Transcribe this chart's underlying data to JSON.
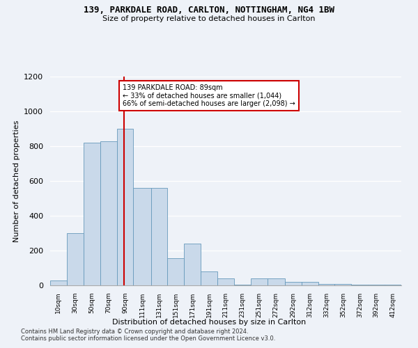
{
  "title1": "139, PARKDALE ROAD, CARLTON, NOTTINGHAM, NG4 1BW",
  "title2": "Size of property relative to detached houses in Carlton",
  "xlabel": "Distribution of detached houses by size in Carlton",
  "ylabel": "Number of detached properties",
  "annotation_title": "139 PARKDALE ROAD: 89sqm",
  "annotation_line1": "← 33% of detached houses are smaller (1,044)",
  "annotation_line2": "66% of semi-detached houses are larger (2,098) →",
  "footer1": "Contains HM Land Registry data © Crown copyright and database right 2024.",
  "footer2": "Contains public sector information licensed under the Open Government Licence v3.0.",
  "bar_color": "#c9d9ea",
  "bar_edge_color": "#6699bb",
  "property_line_color": "#cc0000",
  "annotation_box_color": "#cc0000",
  "background_color": "#eef2f8",
  "categories": [
    "10sqm",
    "30sqm",
    "50sqm",
    "70sqm",
    "90sqm",
    "111sqm",
    "131sqm",
    "151sqm",
    "171sqm",
    "191sqm",
    "211sqm",
    "231sqm",
    "251sqm",
    "272sqm",
    "292sqm",
    "312sqm",
    "332sqm",
    "352sqm",
    "372sqm",
    "392sqm",
    "412sqm"
  ],
  "bin_left_edges": [
    0,
    20,
    40,
    60,
    80,
    100,
    121,
    141,
    161,
    181,
    201,
    221,
    241,
    261,
    282,
    302,
    322,
    342,
    362,
    382,
    402
  ],
  "bin_right_edges": [
    20,
    40,
    60,
    80,
    100,
    121,
    141,
    161,
    181,
    201,
    221,
    241,
    261,
    282,
    302,
    322,
    342,
    362,
    382,
    402,
    422
  ],
  "values": [
    30,
    300,
    820,
    830,
    900,
    560,
    560,
    155,
    240,
    80,
    40,
    5,
    40,
    40,
    20,
    20,
    10,
    10,
    5,
    5,
    5
  ],
  "property_line_x": 89,
  "ylim": [
    0,
    1200
  ],
  "yticks": [
    0,
    200,
    400,
    600,
    800,
    1000,
    1200
  ]
}
